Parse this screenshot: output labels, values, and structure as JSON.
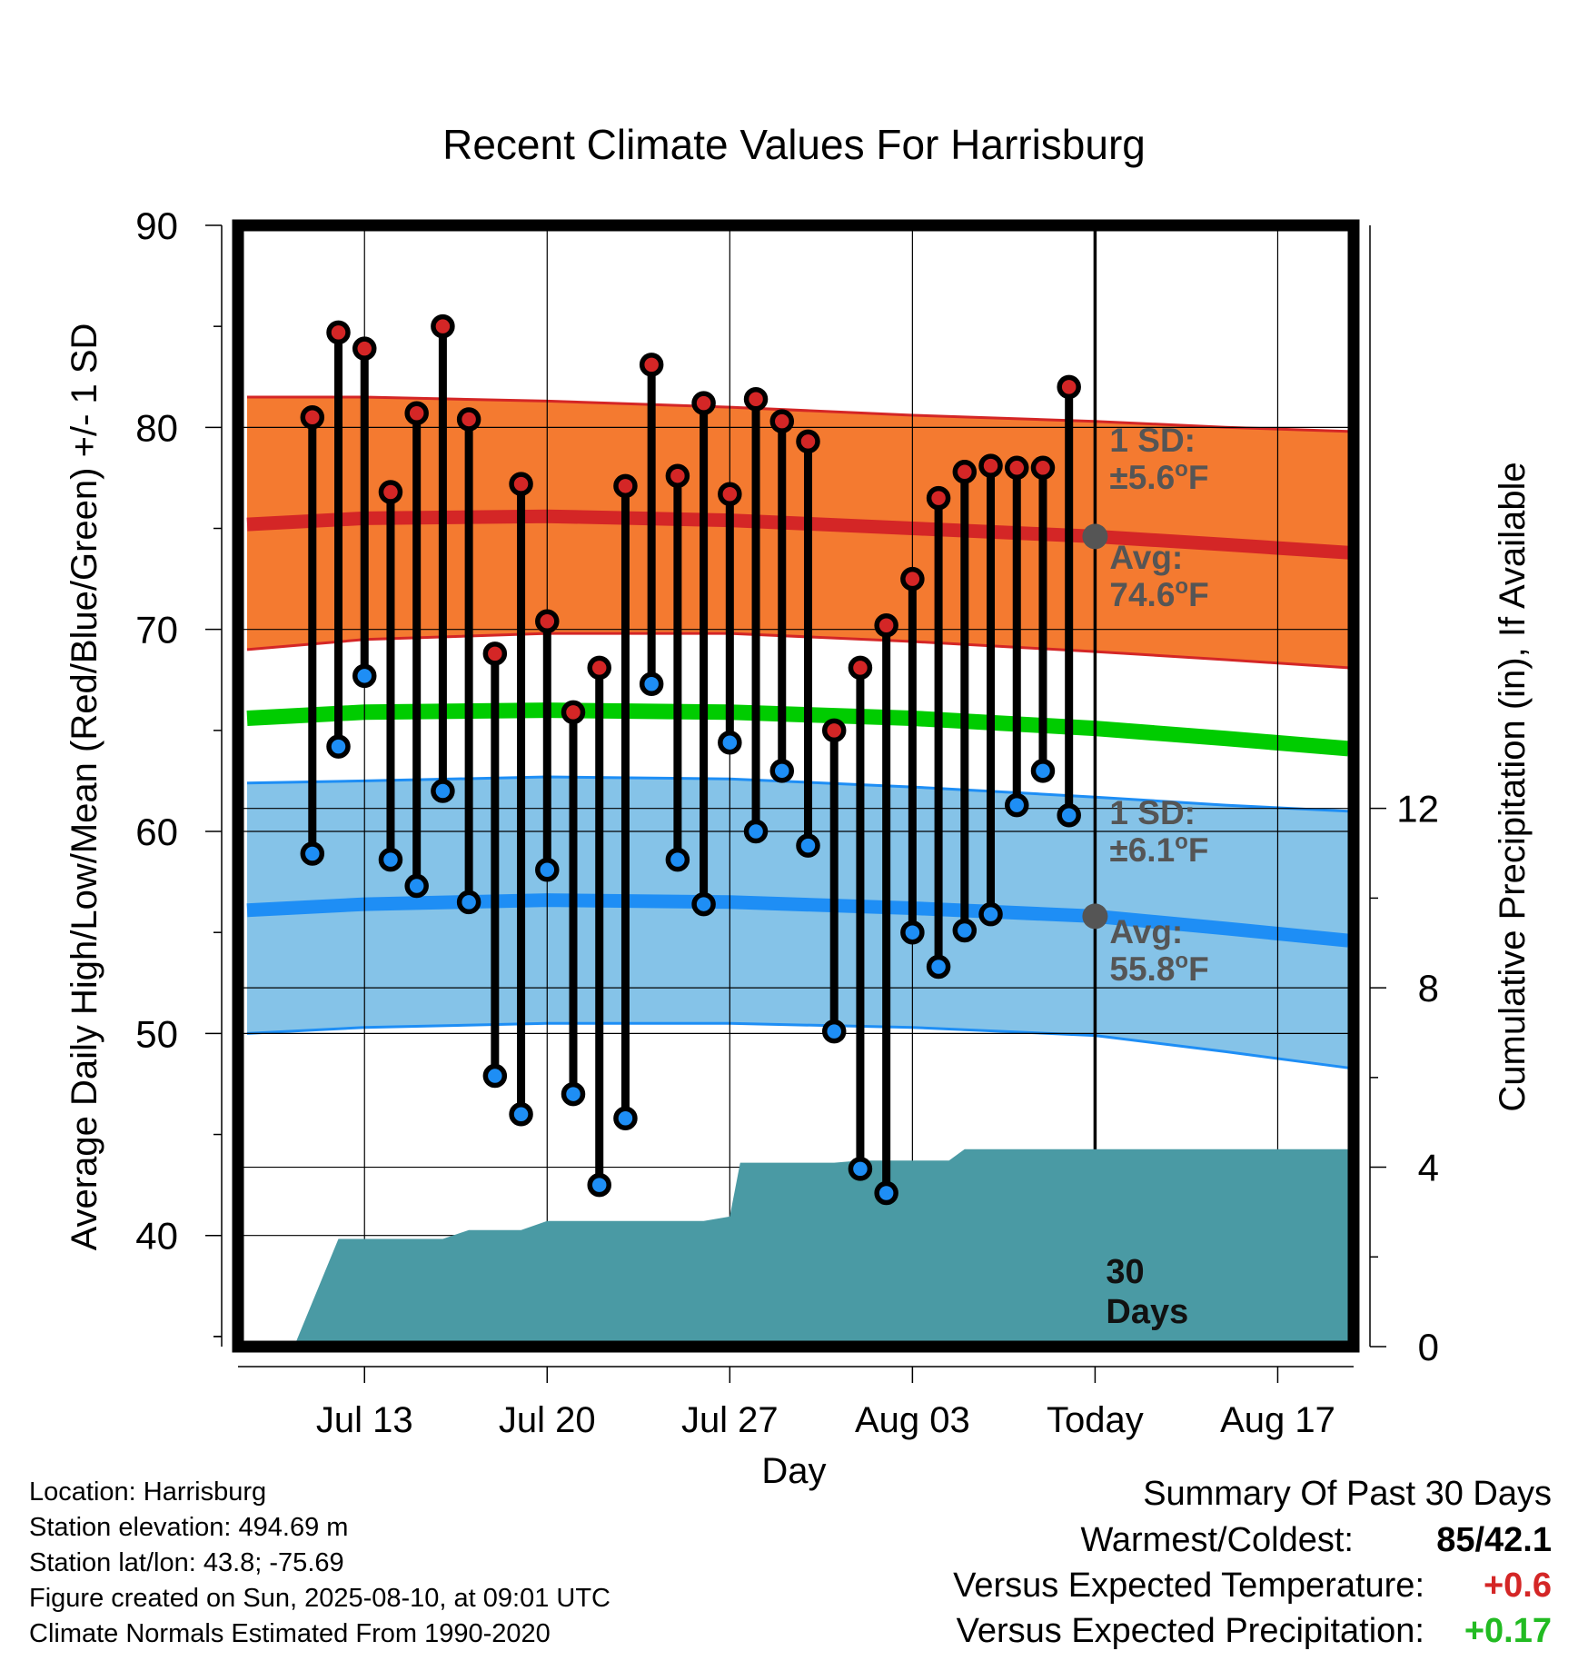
{
  "chart_data": {
    "type": "line",
    "title": "Recent Climate Values For Harrisburg",
    "xlabel": "Day",
    "ylabel": "Average Daily High/Low/Mean (Red/Blue/Green) +/- 1 SD",
    "ylabel_right": "Cumulative Precipitation (in), If Available",
    "ylim": [
      34.5,
      90
    ],
    "ylim_right": [
      0,
      25
    ],
    "xlim": [
      -32.5,
      9.7
    ],
    "yticks": [
      "90",
      "80",
      "70",
      "60",
      "50",
      "40"
    ],
    "yticks_right": [
      "12",
      "8",
      "4",
      "0"
    ],
    "yticks_right_values": [
      12,
      8,
      4,
      0
    ],
    "xticks": [
      {
        "label": "Jul 13",
        "x": -28
      },
      {
        "label": "Jul 20",
        "x": -21
      },
      {
        "label": "Jul 27",
        "x": -14
      },
      {
        "label": "Aug 03",
        "x": -7
      },
      {
        "label": "Today",
        "x": 0
      },
      {
        "label": "Aug 17",
        "x": 7
      }
    ],
    "grid": true,
    "colors": {
      "high_band": "#f47a30",
      "high_avg": "#d42626",
      "high_edge": "#d42626",
      "low_band": "#85c3e8",
      "low_avg": "#1e8ef5",
      "low_edge": "#1e8ef5",
      "mean": "#00cc00",
      "precip": "#4a9aa4",
      "high_marker": "#d42626",
      "low_marker": "#1e8ef5",
      "annotation": "#555555"
    },
    "normals": {
      "x": [
        -32.5,
        -28,
        -21,
        -14,
        -7,
        0,
        5,
        9.7
      ],
      "high_avg": [
        75.2,
        75.5,
        75.6,
        75.4,
        75.0,
        74.6,
        74.2,
        73.8
      ],
      "high_upper": [
        81.5,
        81.5,
        81.3,
        81.0,
        80.6,
        80.3,
        80.0,
        79.8
      ],
      "high_lower": [
        69.0,
        69.5,
        69.8,
        69.8,
        69.4,
        68.9,
        68.5,
        68.1
      ],
      "mean": [
        65.6,
        65.9,
        66.0,
        65.9,
        65.6,
        65.1,
        64.6,
        64.1
      ],
      "low_avg": [
        56.1,
        56.4,
        56.6,
        56.5,
        56.2,
        55.8,
        55.2,
        54.6
      ],
      "low_upper": [
        62.4,
        62.5,
        62.7,
        62.6,
        62.2,
        61.7,
        61.3,
        61.0
      ],
      "low_lower": [
        50.0,
        50.3,
        50.5,
        50.5,
        50.3,
        49.9,
        49.1,
        48.3
      ]
    },
    "daily": {
      "x": [
        -30,
        -29,
        -28,
        -27,
        -26,
        -25,
        -24,
        -23,
        -22,
        -21,
        -20,
        -19,
        -18,
        -17,
        -16,
        -15,
        -14,
        -13,
        -12,
        -11,
        -10,
        -9,
        -8,
        -7,
        -6,
        -5,
        -4,
        -3,
        -2,
        -1
      ],
      "high": [
        80.5,
        84.7,
        83.9,
        76.8,
        80.7,
        85.0,
        80.4,
        68.8,
        77.2,
        70.4,
        65.9,
        68.1,
        77.1,
        83.1,
        77.6,
        81.2,
        76.7,
        81.4,
        80.3,
        79.3,
        65.0,
        68.1,
        70.2,
        72.5,
        76.5,
        77.8,
        78.1,
        78.0,
        78.0,
        82.0
      ],
      "low": [
        58.9,
        64.2,
        67.7,
        58.6,
        57.3,
        62.0,
        56.5,
        47.9,
        46.0,
        58.1,
        47.0,
        42.5,
        45.8,
        67.3,
        58.6,
        56.4,
        64.4,
        60.0,
        63.0,
        59.3,
        50.1,
        43.3,
        42.1,
        55.0,
        53.3,
        55.1,
        55.9,
        61.3,
        63.0,
        60.8
      ]
    },
    "precip": {
      "x": [
        -30.7,
        -29,
        -26,
        -25,
        -24,
        -22,
        -21,
        -15,
        -14,
        -13.6,
        -10,
        -9,
        -8,
        -7,
        -6,
        -5.6,
        -5,
        -4,
        9.7
      ],
      "values": [
        0,
        2.4,
        2.4,
        2.4,
        2.6,
        2.6,
        2.8,
        2.8,
        2.9,
        4.1,
        4.1,
        4.15,
        4.15,
        4.15,
        4.15,
        4.15,
        4.4,
        4.4,
        4.4
      ]
    },
    "annotations": {
      "high_sd": [
        "1 SD:",
        "±5.6°F"
      ],
      "high_avg": [
        "Avg:",
        "74.6°F"
      ],
      "low_sd": [
        "1 SD:",
        "±6.1°F"
      ],
      "low_avg": [
        "Avg:",
        "55.8°F"
      ],
      "today_avg_high": 74.6,
      "today_avg_low": 55.8,
      "window": [
        "30",
        "Days"
      ]
    }
  },
  "footer": [
    "Location: Harrisburg",
    "Station elevation: 494.69 m",
    "Station lat/lon: 43.8; -75.69",
    "Figure created on Sun, 2025-08-10, at 09:01 UTC",
    "Climate Normals Estimated From 1990-2020"
  ],
  "summary": {
    "heading": "Summary Of Past 30 Days",
    "rows": [
      {
        "label": "Warmest/Coldest:",
        "value": "85/42.1",
        "color": "#000000"
      },
      {
        "label": "Versus Expected Temperature:",
        "value": "+0.6",
        "color": "#d42626"
      },
      {
        "label": "Versus Expected Precipitation:",
        "value": "+0.17",
        "color": "#22bb22"
      }
    ]
  }
}
